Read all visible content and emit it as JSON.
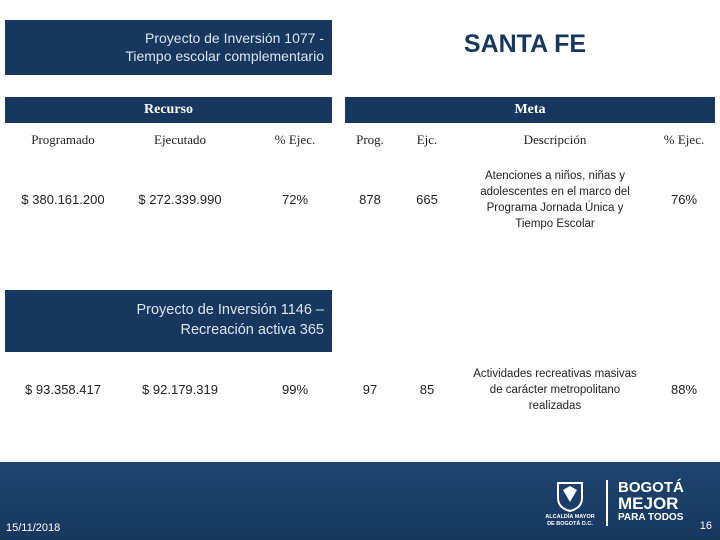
{
  "project1": {
    "title_lines": [
      "Proyecto de Inversión 1077 -",
      "Tiempo escolar complementario"
    ]
  },
  "city": "SANTA FE",
  "groups": {
    "recurso": "Recurso",
    "meta": "Meta"
  },
  "table": {
    "headers": [
      "Programado",
      "Ejecutado",
      "% Ejec.",
      "Prog.",
      "Ejc.",
      "Descripción",
      "% Ejec."
    ],
    "rows": [
      [
        "$ 380.161.200",
        "$ 272.339.990",
        "72%",
        "878",
        "665",
        [
          "Atenciones a niños, niñas y",
          "adolescentes en el marco del",
          "Programa Jornada Única y",
          "Tiempo Escolar"
        ],
        "76%"
      ],
      [
        "$ 93.358.417",
        "$ 92.179.319",
        "99%",
        "97",
        "85",
        [
          "Actividades recreativas masivas",
          "de carácter metropolitano",
          "realizadas"
        ],
        "88%"
      ]
    ]
  },
  "project2": {
    "title_lines": [
      "Proyecto de Inversión 1146 –",
      "Recreación activa 365"
    ]
  },
  "footer": {
    "date": "15/11/2018",
    "page": "16",
    "logo_left": [
      "ALCALDÍA MAYOR",
      "DE BOGOTÁ D.C."
    ],
    "logo_right": [
      "BOGOTÁ",
      "MEJOR",
      "PARA TODOS"
    ]
  }
}
